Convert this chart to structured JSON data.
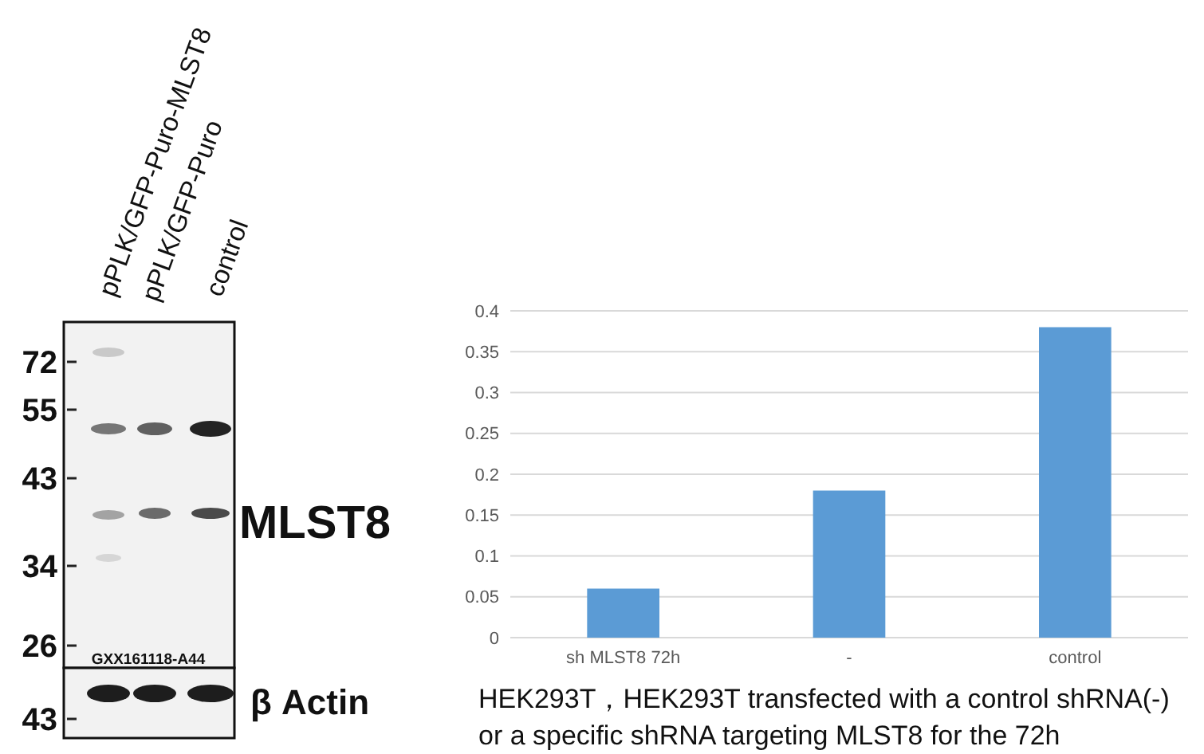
{
  "chart_data": [
    {
      "type": "other",
      "annotations": [
        "pPLK/GFP-Puro-MLST8",
        "pPLK/GFP-Puro",
        "control",
        "72",
        "55",
        "43",
        "34",
        "26",
        "43",
        "MLST8",
        "β Actin",
        "GXX161118-A44"
      ]
    },
    {
      "type": "bar",
      "categories": [
        "sh MLST8 72h",
        "-",
        "control"
      ],
      "values": [
        0.06,
        0.18,
        0.38
      ],
      "color": "#5b9bd5",
      "ylim": [
        0,
        0.4
      ],
      "yticks": [
        0,
        0.05,
        0.1,
        0.15,
        0.2,
        0.25,
        0.3,
        0.35,
        0.4
      ],
      "grid": "y",
      "annotations": [
        "HEK293T，HEK293T transfected with a control shRNA(-) or a specific shRNA targeting MLST8 for the 72h"
      ]
    }
  ]
}
